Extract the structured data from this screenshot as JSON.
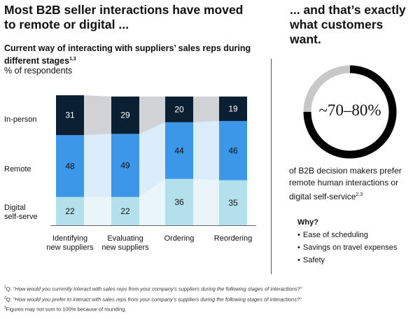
{
  "header": {
    "left_title": "Most B2B seller interactions have moved to remote or digital ...",
    "right_title": "... and that’s exactly what customers want."
  },
  "chart_data": {
    "type": "bar",
    "stacked": true,
    "title": "Current way of interacting with suppliers’ sales reps during different stages",
    "title_footnote": "1,3",
    "unit": "% of respondents",
    "categories": [
      "Identifying\nnew suppliers",
      "Evaluating\nnew suppliers",
      "Ordering",
      "Reordering"
    ],
    "series": [
      {
        "name": "Digital self-serve",
        "values": [
          22,
          22,
          36,
          35
        ],
        "color": "#b4e0ec",
        "band_color": "#eaf5f9"
      },
      {
        "name": "Remote",
        "values": [
          48,
          49,
          44,
          46
        ],
        "color": "#3d97e8",
        "band_color": "#dbecfa"
      },
      {
        "name": "In-person",
        "values": [
          31,
          29,
          20,
          19
        ],
        "color": "#0b1f33",
        "band_color": "#d0d2d6"
      }
    ],
    "series_labels": [
      "Digital\nself-serve",
      "Remote",
      "In-person"
    ],
    "scale_max": 100
  },
  "stat": {
    "value_text": "~70–80%",
    "ring_fill_fraction": 0.75,
    "ring_color": "#000000",
    "ring_track_color": "#c8c8c8",
    "description": "of B2B decision makers prefer remote human interactions or digital self-service",
    "footnote": "2,3"
  },
  "why": {
    "heading": "Why?",
    "items": [
      "Ease of scheduling",
      "Savings on travel expenses",
      "Safety"
    ]
  },
  "footnotes": [
    {
      "mark": "1",
      "prefix": "Q: ",
      "text": "“How would you currently interact with sales reps from your company’s suppliers during the following stages of interactions?”"
    },
    {
      "mark": "2",
      "prefix": "Q: ",
      "text": "“How would you prefer to interact with sales reps from your company’s suppliers during the following stages of interactions?”"
    },
    {
      "mark": "3",
      "prefix": "",
      "text": "Figures may not sum to 100% because of rounding."
    }
  ]
}
